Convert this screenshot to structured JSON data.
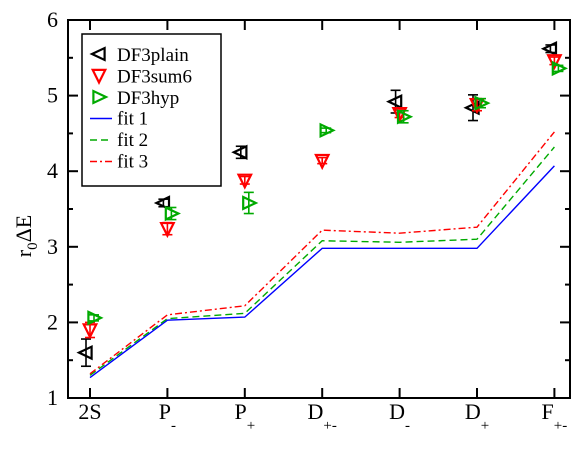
{
  "chart_data": {
    "type": "scatter",
    "ylabel": "r0ΔE",
    "ylabel_main": "r",
    "ylabel_sub": "0",
    "ylabel_rest": "ΔE",
    "ylim": [
      1,
      6
    ],
    "yticks": [
      "1",
      "2",
      "3",
      "4",
      "5",
      "6"
    ],
    "categories": [
      {
        "main": "2S",
        "sub": ""
      },
      {
        "main": "P",
        "sub": "-"
      },
      {
        "main": "P",
        "sub": "+"
      },
      {
        "main": "D",
        "sub": "+-"
      },
      {
        "main": "D",
        "sub": "-"
      },
      {
        "main": "D",
        "sub": "+"
      },
      {
        "main": "F",
        "sub": "+-"
      }
    ],
    "series": [
      {
        "name": "DF3plain",
        "marker": "triangle-left",
        "color": "#000000",
        "values": [
          1.6,
          3.58,
          4.25,
          null,
          4.92,
          4.84,
          5.62
        ],
        "errors": [
          0.18,
          0.05,
          0.08,
          null,
          0.15,
          0.17,
          0.05
        ]
      },
      {
        "name": "DF3sum6",
        "marker": "triangle-down",
        "color": "#ff0000",
        "values": [
          1.9,
          3.24,
          3.88,
          4.14,
          4.76,
          4.88,
          5.46
        ],
        "errors": [
          0.1,
          0.08,
          0.05,
          0.04,
          0.05,
          0.08,
          0.05
        ]
      },
      {
        "name": "DF3hyp",
        "marker": "triangle-right",
        "color": "#00aa00",
        "values": [
          2.06,
          3.44,
          3.58,
          4.54,
          4.72,
          4.9,
          5.36
        ],
        "errors": [
          0.04,
          0.08,
          0.14,
          0.03,
          0.08,
          0.06,
          0.04
        ]
      }
    ],
    "fits": [
      {
        "name": "fit 1",
        "style": "solid",
        "color": "#0000ff",
        "values": [
          1.27,
          2.03,
          2.07,
          2.98,
          2.98,
          2.98,
          4.07
        ]
      },
      {
        "name": "fit 2",
        "style": "dashed",
        "color": "#00aa00",
        "values": [
          1.3,
          2.05,
          2.12,
          3.08,
          3.06,
          3.1,
          4.32
        ]
      },
      {
        "name": "fit 3",
        "style": "dashdot",
        "color": "#ff0000",
        "values": [
          1.32,
          2.1,
          2.22,
          3.22,
          3.18,
          3.26,
          4.52
        ]
      }
    ],
    "legend_position": "top-left"
  }
}
